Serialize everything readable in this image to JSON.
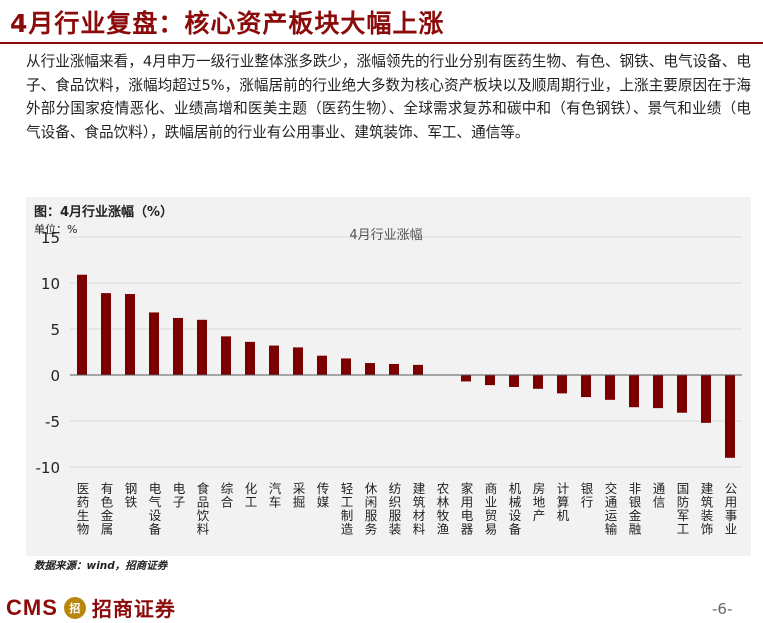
{
  "header": {
    "title": "4月行业复盘：核心资产板块大幅上涨"
  },
  "body": {
    "paragraph": "从行业涨幅来看，4月申万一级行业整体涨多跌少，涨幅领先的行业分别有医药生物、有色、钢铁、电气设备、电子、食品饮料，涨幅均超过5%，涨幅居前的行业绝大多数为核心资产板块以及顺周期行业，上涨主要原因在于海外部分国家疫情恶化、业绩高增和医美主题（医药生物）、全球需求复苏和碳中和（有色钢铁）、景气和业绩（电气设备、食品饮料），跌幅居前的行业有公用事业、建筑装饰、军工、通信等。"
  },
  "figure": {
    "title": "图：4月行业涨幅（%）",
    "unit": "单位：%"
  },
  "chart_data": {
    "type": "bar",
    "title": "4月行业涨幅",
    "xlabel": "",
    "ylabel": "%",
    "ylim": [
      -10,
      15
    ],
    "yticks": [
      15,
      10,
      5,
      0,
      -5,
      -10
    ],
    "grid": true,
    "bar_color": "#7b0000",
    "categories": [
      "医药生物",
      "有色金属",
      "钢铁",
      "电气设备",
      "电子",
      "食品饮料",
      "综合",
      "化工",
      "汽车",
      "采掘",
      "传媒",
      "轻工制造",
      "休闲服务",
      "纺织服装",
      "建筑材料",
      "农林牧渔",
      "家用电器",
      "商业贸易",
      "机械设备",
      "房地产",
      "计算机",
      "银行",
      "交通运输",
      "非银金融",
      "通信",
      "国防军工",
      "建筑装饰",
      "公用事业"
    ],
    "values": [
      10.9,
      8.9,
      8.8,
      6.8,
      6.2,
      6.0,
      4.2,
      3.6,
      3.2,
      3.0,
      2.1,
      1.8,
      1.3,
      1.2,
      1.1,
      0.0,
      -0.7,
      -1.1,
      -1.3,
      -1.5,
      -2.0,
      -2.4,
      -2.7,
      -3.5,
      -3.6,
      -4.1,
      -5.2,
      -9.0
    ]
  },
  "source": {
    "text": "数据来源：wind，招商证券"
  },
  "footer": {
    "logo_latin": "CMS",
    "logo_emblem": "招",
    "logo_cn": "招商证券",
    "page": "-6-"
  }
}
